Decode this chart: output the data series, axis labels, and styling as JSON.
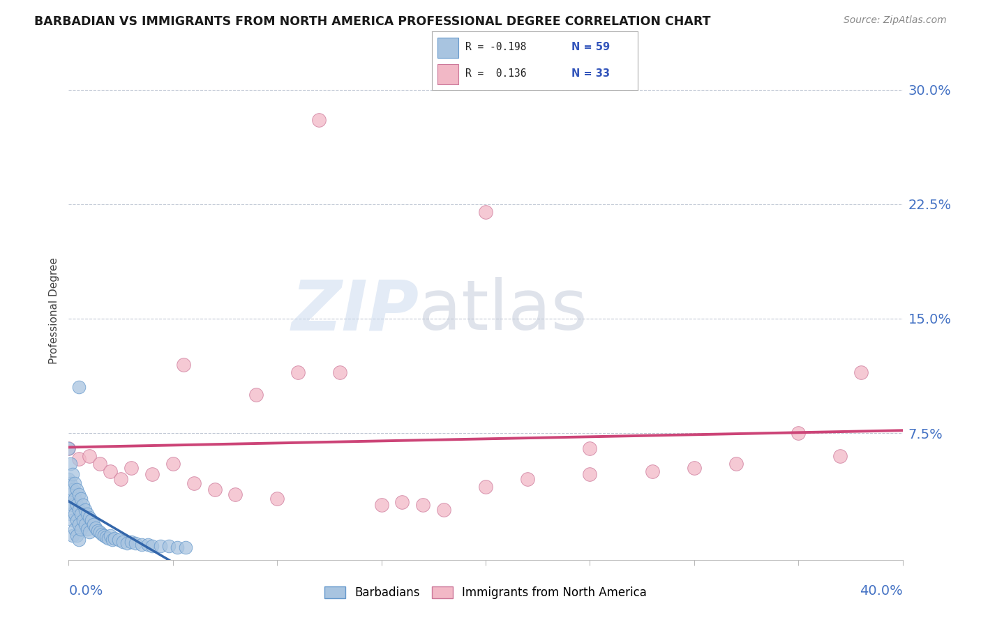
{
  "title": "BARBADIAN VS IMMIGRANTS FROM NORTH AMERICA PROFESSIONAL DEGREE CORRELATION CHART",
  "source": "Source: ZipAtlas.com",
  "ylabel": "Professional Degree",
  "ytick_values": [
    0.0,
    0.075,
    0.15,
    0.225,
    0.3
  ],
  "xmin": 0.0,
  "xmax": 0.4,
  "ymin": -0.008,
  "ymax": 0.318,
  "barbadian_color": "#a8c4e0",
  "immigrant_color": "#f2b8c6",
  "barbadian_edge_color": "#6699cc",
  "immigrant_edge_color": "#cc7799",
  "barbadian_line_color": "#3366aa",
  "immigrant_line_color": "#cc4477",
  "background_color": "#ffffff",
  "barbadian_x": [
    0.0,
    0.0,
    0.0,
    0.001,
    0.001,
    0.001,
    0.001,
    0.002,
    0.002,
    0.002,
    0.002,
    0.002,
    0.003,
    0.003,
    0.003,
    0.003,
    0.004,
    0.004,
    0.004,
    0.004,
    0.005,
    0.005,
    0.005,
    0.005,
    0.006,
    0.006,
    0.006,
    0.007,
    0.007,
    0.008,
    0.008,
    0.009,
    0.009,
    0.01,
    0.01,
    0.011,
    0.012,
    0.013,
    0.014,
    0.015,
    0.016,
    0.017,
    0.018,
    0.019,
    0.02,
    0.021,
    0.022,
    0.024,
    0.026,
    0.028,
    0.03,
    0.032,
    0.035,
    0.038,
    0.04,
    0.044,
    0.048,
    0.052,
    0.056
  ],
  "barbadian_y": [
    0.065,
    0.045,
    0.03,
    0.055,
    0.042,
    0.035,
    0.022,
    0.048,
    0.038,
    0.028,
    0.018,
    0.008,
    0.042,
    0.032,
    0.022,
    0.012,
    0.038,
    0.028,
    0.018,
    0.008,
    0.035,
    0.025,
    0.015,
    0.005,
    0.032,
    0.022,
    0.012,
    0.028,
    0.018,
    0.025,
    0.015,
    0.022,
    0.012,
    0.02,
    0.01,
    0.018,
    0.015,
    0.013,
    0.011,
    0.01,
    0.009,
    0.008,
    0.007,
    0.006,
    0.008,
    0.005,
    0.006,
    0.005,
    0.004,
    0.003,
    0.004,
    0.003,
    0.002,
    0.002,
    0.001,
    0.001,
    0.001,
    0.0,
    0.0
  ],
  "barbadian_outlier_x": [
    0.005
  ],
  "barbadian_outlier_y": [
    0.105
  ],
  "immigrant_x": [
    0.0,
    0.005,
    0.01,
    0.015,
    0.02,
    0.025,
    0.03,
    0.04,
    0.05,
    0.055,
    0.06,
    0.07,
    0.08,
    0.09,
    0.1,
    0.11,
    0.13,
    0.15,
    0.16,
    0.17,
    0.18,
    0.2,
    0.22,
    0.25,
    0.28,
    0.3,
    0.32,
    0.35,
    0.37,
    0.38,
    0.25,
    0.2,
    0.12
  ],
  "immigrant_y": [
    0.065,
    0.058,
    0.06,
    0.055,
    0.05,
    0.045,
    0.052,
    0.048,
    0.055,
    0.12,
    0.042,
    0.038,
    0.035,
    0.1,
    0.032,
    0.115,
    0.115,
    0.028,
    0.03,
    0.028,
    0.025,
    0.04,
    0.045,
    0.048,
    0.05,
    0.052,
    0.055,
    0.075,
    0.06,
    0.115,
    0.065,
    0.22,
    0.28
  ]
}
